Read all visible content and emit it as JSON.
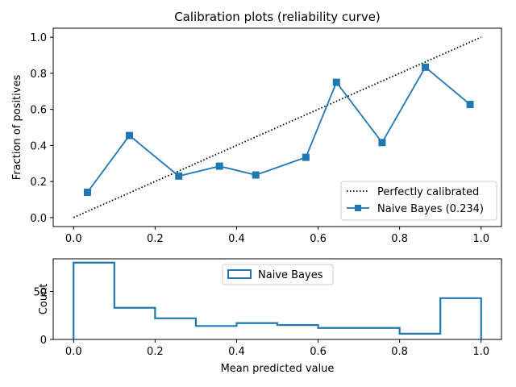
{
  "chart_data": [
    {
      "type": "line",
      "title": "Calibration plots  (reliability curve)",
      "xlabel": "",
      "ylabel": "Fraction of positives",
      "xlim": [
        -0.05,
        1.05
      ],
      "ylim": [
        -0.05,
        1.05
      ],
      "xticks": [
        0.0,
        0.2,
        0.4,
        0.6,
        0.8,
        1.0
      ],
      "xtick_labels": [
        "0.0",
        "0.2",
        "0.4",
        "0.6",
        "0.8",
        "1.0"
      ],
      "yticks": [
        0.0,
        0.2,
        0.4,
        0.6,
        0.8,
        1.0
      ],
      "ytick_labels": [
        "0.0",
        "0.2",
        "0.4",
        "0.6",
        "0.8",
        "1.0"
      ],
      "legend_position": "lower-right",
      "series": [
        {
          "name": "Perfectly calibrated",
          "style": "dotted",
          "color": "#000000",
          "x": [
            0,
            1
          ],
          "y": [
            0,
            1
          ]
        },
        {
          "name": "Naive Bayes (0.234)",
          "style": "line-square-marker",
          "color": "#1f77b4",
          "x": [
            0.034,
            0.137,
            0.258,
            0.358,
            0.447,
            0.57,
            0.645,
            0.757,
            0.863,
            0.973
          ],
          "y": [
            0.14,
            0.455,
            0.23,
            0.285,
            0.236,
            0.334,
            0.75,
            0.416,
            0.834,
            0.627
          ]
        }
      ]
    },
    {
      "type": "histogram",
      "title": "",
      "xlabel": "Mean predicted value",
      "ylabel": "Count",
      "xlim": [
        -0.05,
        1.05
      ],
      "ylim": [
        0,
        84
      ],
      "xticks": [
        0.0,
        0.2,
        0.4,
        0.6,
        0.8,
        1.0
      ],
      "xtick_labels": [
        "0.0",
        "0.2",
        "0.4",
        "0.6",
        "0.8",
        "1.0"
      ],
      "yticks": [
        0,
        50
      ],
      "ytick_labels": [
        "0",
        "50"
      ],
      "legend_position": "upper-center",
      "series": [
        {
          "name": "Naive Bayes",
          "style": "step",
          "color": "#1f77b4",
          "bin_edges": [
            0.0,
            0.1,
            0.2,
            0.3,
            0.4,
            0.5,
            0.6,
            0.7,
            0.8,
            0.9,
            1.0
          ],
          "counts": [
            80,
            33,
            22,
            14,
            17,
            15,
            12,
            12,
            6,
            43
          ]
        }
      ]
    }
  ]
}
